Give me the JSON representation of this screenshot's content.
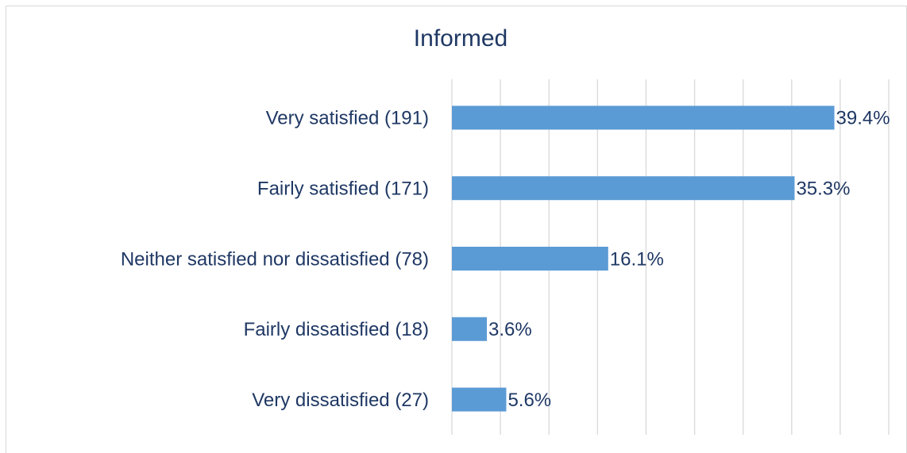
{
  "chart_data": {
    "type": "bar",
    "orientation": "horizontal",
    "title": "Informed",
    "categories": [
      "Very satisfied (191)",
      "Fairly satisfied (171)",
      "Neither satisfied nor dissatisfied (78)",
      "Fairly dissatisfied (18)",
      "Very dissatisfied (27)"
    ],
    "values": [
      39.4,
      35.3,
      16.1,
      3.6,
      5.6
    ],
    "value_labels": [
      "39.4%",
      "35.3%",
      "16.1%",
      "3.6%",
      "5.6%"
    ],
    "color": "#5b9bd5",
    "xlim": [
      0,
      45
    ],
    "xticks": [
      0,
      5,
      10,
      15,
      20,
      25,
      30,
      35,
      40,
      45
    ],
    "grid": true
  }
}
